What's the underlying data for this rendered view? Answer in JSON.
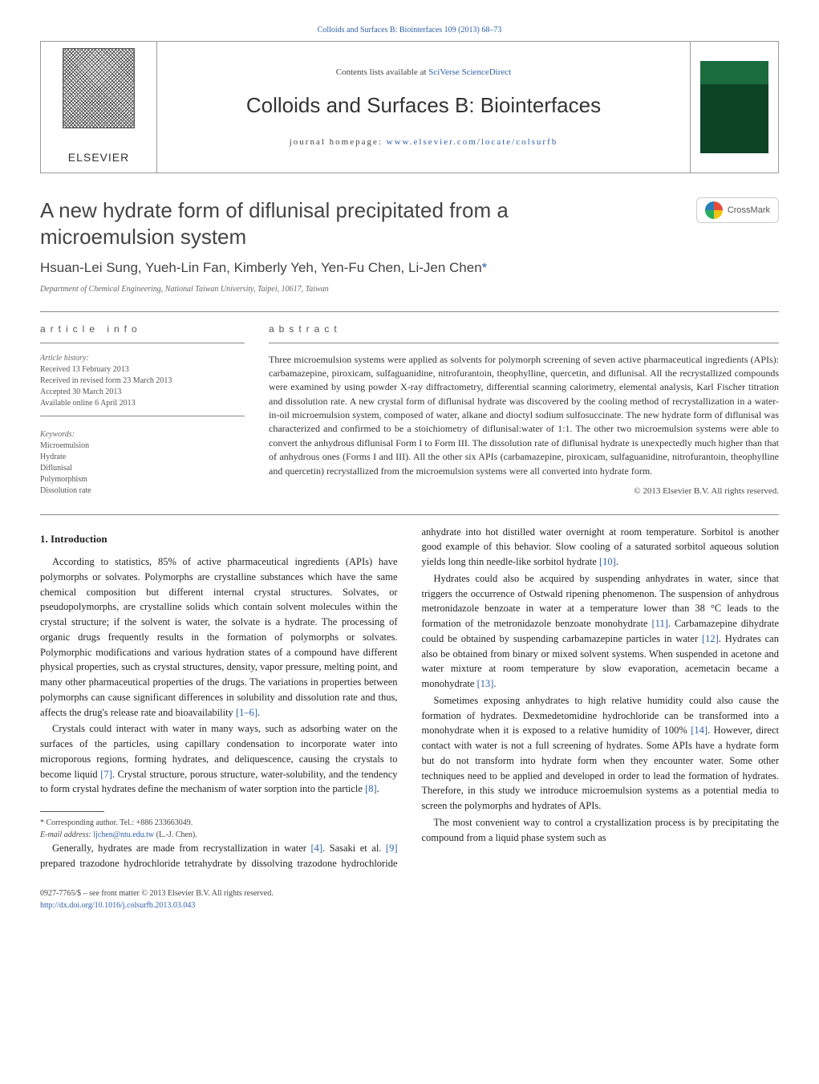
{
  "topLink": "Colloids and Surfaces B: Biointerfaces 109 (2013) 68–73",
  "header": {
    "publisher": "ELSEVIER",
    "contentsPrefix": "Contents lists available at",
    "contentsLink": "SciVerse ScienceDirect",
    "journal": "Colloids and Surfaces B: Biointerfaces",
    "homepagePrefix": "journal homepage:",
    "homepageUrl": "www.elsevier.com/locate/colsurfb"
  },
  "crossmark": "CrossMark",
  "title": "A new hydrate form of diflunisal precipitated from a microemulsion system",
  "authors": "Hsuan-Lei Sung, Yueh-Lin Fan, Kimberly Yeh, Yen-Fu Chen, Li-Jen Chen",
  "authorStar": "*",
  "affiliation": "Department of Chemical Engineering, National Taiwan University, Taipei, 10617, Taiwan",
  "sections": {
    "info": "article info",
    "abstract": "abstract"
  },
  "history": {
    "head": "Article history:",
    "received": "Received 13 February 2013",
    "revised": "Received in revised form 23 March 2013",
    "accepted": "Accepted 30 March 2013",
    "online": "Available online 6 April 2013"
  },
  "keywords": {
    "head": "Keywords:",
    "k1": "Microemulsion",
    "k2": "Hydrate",
    "k3": "Diflunisal",
    "k4": "Polymorphism",
    "k5": "Dissolution rate"
  },
  "abstract": "Three microemulsion systems were applied as solvents for polymorph screening of seven active pharmaceutical ingredients (APIs): carbamazepine, piroxicam, sulfaguanidine, nitrofurantoin, theophylline, quercetin, and diflunisal. All the recrystallized compounds were examined by using powder X-ray diffractometry, differential scanning calorimetry, elemental analysis, Karl Fischer titration and dissolution rate. A new crystal form of diflunisal hydrate was discovered by the cooling method of recrystallization in a water-in-oil microemulsion system, composed of water, alkane and dioctyl sodium sulfosuccinate. The new hydrate form of diflunisal was characterized and confirmed to be a stoichiometry of diflunisal:water of 1:1. The other two microemulsion systems were able to convert the anhydrous diflunisal Form I to Form III. The dissolution rate of diflunisal hydrate is unexpectedly much higher than that of anhydrous ones (Forms I and III). All the other six APIs (carbamazepine, piroxicam, sulfaguanidine, nitrofurantoin, theophylline and quercetin) recrystallized from the microemulsion systems were all converted into hydrate form.",
  "copyright": "© 2013 Elsevier B.V. All rights reserved.",
  "intro": {
    "heading": "1.  Introduction",
    "p1a": "According to statistics, 85% of active pharmaceutical ingredients (APIs) have polymorphs or solvates. Polymorphs are crystalline substances which have the same chemical composition but different internal crystal structures. Solvates, or pseudopolymorphs, are crystalline solids which contain solvent molecules within the crystal structure; if the solvent is water, the solvate is a hydrate. The processing of organic drugs frequently results in the formation of polymorphs or solvates. Polymorphic modifications and various hydration states of a compound have different physical properties, such as crystal structures, density, vapor pressure, melting point, and many other pharmaceutical properties of the drugs. The variations in properties between polymorphs can cause significant differences in solubility and dissolution rate and thus, affects the drug's release rate and bioavailability ",
    "r1": "[1–6]",
    "p1b": ".",
    "p2a": "Crystals could interact with water in many ways, such as adsorbing water on the surfaces of the particles, using capillary condensation to incorporate water into microporous regions, forming hydrates, and deliquescence, causing the crystals to become liquid ",
    "r2": "[7]",
    "p2b": ". Crystal structure, porous structure, water-solubility, and the tendency to form crystal hydrates define the mechanism of water sorption into the particle ",
    "r3": "[8]",
    "p2c": ".",
    "p3a": "Generally, hydrates are made from recrystallization in water ",
    "r4": "[4]",
    "p3b": ". Sasaki et al. ",
    "r5": "[9]",
    "p3c": " prepared trazodone hydrochloride tetrahydrate by dissolving trazodone hydrochloride anhydrate into hot distilled water overnight at room temperature. Sorbitol is another good example of this behavior. Slow cooling of a saturated sorbitol aqueous solution yields long thin needle-like sorbitol hydrate ",
    "r6": "[10]",
    "p3d": ".",
    "p4a": "Hydrates could also be acquired by suspending anhydrates in water, since that triggers the occurrence of Ostwald ripening phenomenon. The suspension of anhydrous metronidazole benzoate in water at a temperature lower than 38 °C leads to the formation of the metronidazole benzoate monohydrate ",
    "r7": "[11]",
    "p4b": ". Carbamazepine dihydrate could be obtained by suspending carbamazepine particles in water ",
    "r8": "[12]",
    "p4c": ". Hydrates can also be obtained from binary or mixed solvent systems. When suspended in acetone and water mixture at room temperature by slow evaporation, acemetacin became a monohydrate ",
    "r9": "[13]",
    "p4d": ".",
    "p5a": "Sometimes exposing anhydrates to high relative humidity could also cause the formation of hydrates. Dexmedetomidine hydrochloride can be transformed into a monohydrate when it is exposed to a relative humidity of 100% ",
    "r10": "[14]",
    "p5b": ". However, direct contact with water is not a full screening of hydrates. Some APIs have a hydrate form but do not transform into hydrate form when they encounter water. Some other techniques need to be applied and developed in order to lead the formation of hydrates. Therefore, in this study we introduce microemulsion systems as a potential media to screen the polymorphs and hydrates of APIs.",
    "p6": "The most convenient way to control a crystallization process is by precipitating the compound from a liquid phase system such as"
  },
  "footnote": {
    "corr": "* Corresponding author. Tel.: +886 233663049.",
    "emailLabel": "E-mail address:",
    "email": "ljchen@ntu.edu.tw",
    "emailSuffix": "(L.-J. Chen)."
  },
  "bottom": {
    "line1": "0927-7765/$ – see front matter © 2013 Elsevier B.V. All rights reserved.",
    "doi": "http://dx.doi.org/10.1016/j.colsurfb.2013.03.043"
  }
}
